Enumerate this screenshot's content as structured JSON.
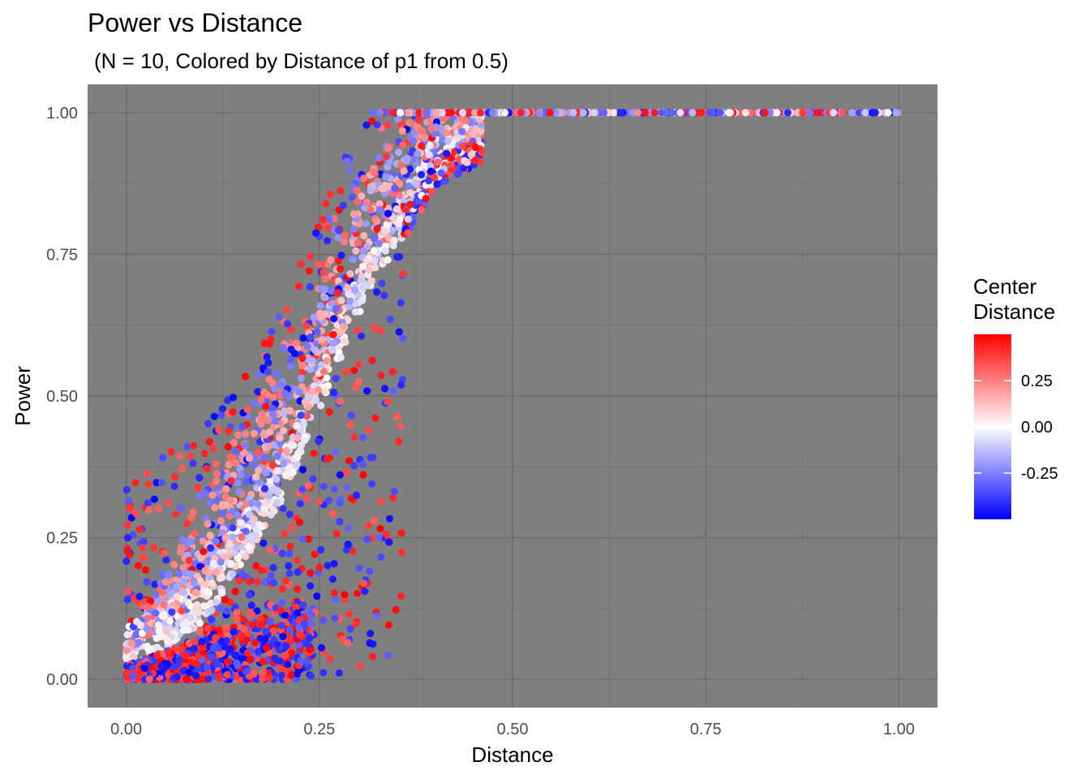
{
  "chart_data": {
    "type": "scatter",
    "title": "Power vs Distance",
    "subtitle": "(N = 10, Colored by Distance of p1 from 0.5)",
    "xlabel": "Distance",
    "ylabel": "Power",
    "xlim": [
      -0.05,
      1.05
    ],
    "ylim": [
      -0.05,
      1.05
    ],
    "x_ticks": [
      "0.00",
      "0.25",
      "0.50",
      "0.75",
      "1.00"
    ],
    "y_ticks": [
      "0.00",
      "0.25",
      "0.50",
      "0.75",
      "1.00"
    ],
    "grid": true,
    "panel_background": "#7f7f7f",
    "legend": {
      "title_lines": [
        "Center",
        "Distance"
      ],
      "position": "right",
      "color_low": "#0000ff",
      "color_mid": "#ffffff",
      "color_high": "#ff0000",
      "range": [
        -0.5,
        0.5
      ],
      "ticks": [
        "0.25",
        "0.00",
        "-0.25"
      ],
      "tick_values": [
        0.25,
        0.0,
        -0.25
      ]
    },
    "color_variable": "Center Distance",
    "trend_center_curve": [
      {
        "x": 0.0,
        "y": 0.05
      },
      {
        "x": 0.1,
        "y": 0.14
      },
      {
        "x": 0.2,
        "y": 0.35
      },
      {
        "x": 0.3,
        "y": 0.68
      },
      {
        "x": 0.4,
        "y": 0.92
      },
      {
        "x": 0.5,
        "y": 0.99
      },
      {
        "x": 0.6,
        "y": 1.0
      },
      {
        "x": 1.0,
        "y": 1.0
      }
    ],
    "saturated_power_range_x": [
      0.34,
      1.0
    ],
    "saturated_power_value": 1.0
  }
}
